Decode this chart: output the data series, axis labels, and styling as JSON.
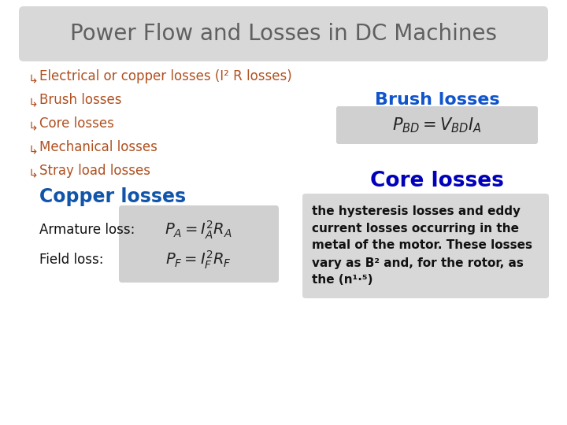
{
  "title": "Power Flow and Losses in DC Machines",
  "title_color": "#606060",
  "title_bg": "#d8d8d8",
  "bg_color": "#ffffff",
  "border_color": "#b0b0b0",
  "bullet_color": "#b05020",
  "bullets": [
    "Electrical or copper losses (I² R losses)",
    "Brush losses",
    "Core losses",
    "Mechanical losses",
    "Stray load losses"
  ],
  "brush_losses_label": "Brush losses",
  "brush_losses_color": "#1155cc",
  "formula_bd_bg": "#d0d0d0",
  "core_losses_label": "Core losses",
  "core_losses_color": "#0000bb",
  "copper_losses_label": "Copper losses",
  "copper_losses_color": "#1155aa",
  "armature_label": "Armature loss:",
  "field_label": "Field loss:",
  "formula_bg": "#d0d0d0",
  "core_text_lines": [
    "the hysteresis losses and eddy",
    "current losses occurring in the",
    "metal of the motor. These losses",
    "vary as B² and, for the rotor, as",
    "the (n¹·⁵)"
  ],
  "core_box_bg": "#d8d8d8",
  "bullet_symbol": "↰"
}
